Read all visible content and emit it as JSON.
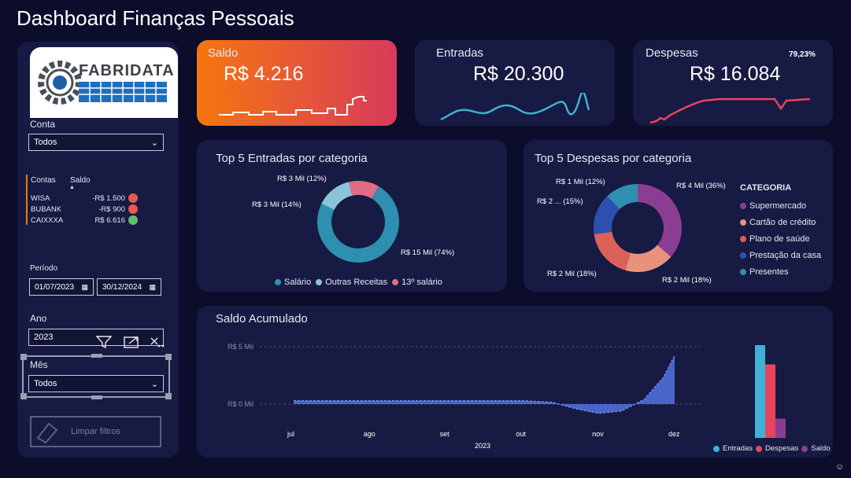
{
  "page_title": "Dashboard Finanças Pessoais",
  "logo_text": "FABRIDATA",
  "filters": {
    "conta_label": "Conta",
    "conta_value": "Todos",
    "contas_header": "Contas",
    "saldo_header": "Saldo",
    "accounts": [
      {
        "name": "WISA",
        "saldo": "-R$ 1.500",
        "status_color": "#e85a4f"
      },
      {
        "name": "BUBANK",
        "saldo": "-R$ 900",
        "status_color": "#e85a4f"
      },
      {
        "name": "CAIXXXA",
        "saldo": "R$ 6.616",
        "status_color": "#5fbf6a"
      }
    ],
    "periodo_label": "Período",
    "date_start": "01/07/2023",
    "date_end": "30/12/2024",
    "ano_label": "Ano",
    "ano_value": "2023",
    "mes_label": "Mês",
    "mes_value": "Todos",
    "clear_label": "Limpar filtros"
  },
  "kpis": {
    "saldo": {
      "label": "Saldo",
      "value": "R$ 4.216"
    },
    "entradas": {
      "label": "Entradas",
      "value": "R$ 20.300"
    },
    "despesas": {
      "label": "Despesas",
      "value": "R$ 16.084",
      "pct": "79,23%"
    }
  },
  "colors": {
    "saldo_grad_start": "#f5760f",
    "saldo_grad_end": "#d83a5c",
    "entradas_line": "#3fb0d6",
    "despesas_line": "#e8445e",
    "area_fill": "#4e6fd8"
  },
  "chart_data": [
    {
      "type": "pie",
      "title": "Top 5 Entradas por categoria",
      "slices": [
        {
          "name": "Salário",
          "value": 74,
          "label": "R$ 15 Mil (74%)",
          "color": "#2e8fb0"
        },
        {
          "name": "Outras Receitas",
          "value": 14,
          "label": "R$ 3 Mil (14%)",
          "color": "#8bc4d8"
        },
        {
          "name": "13º salário",
          "value": 12,
          "label": "R$ 3 Mil (12%)",
          "color": "#e06b85"
        }
      ]
    },
    {
      "type": "pie",
      "title": "Top 5 Despesas por categoria",
      "legend_title": "CATEGORIA",
      "slices": [
        {
          "name": "Supermercado",
          "value": 36,
          "label": "R$ 4 Mil (36%)",
          "color": "#8b3d94"
        },
        {
          "name": "Cartão de crédito",
          "value": 18,
          "label": "R$ 2 Mil (18%)",
          "color": "#e8927c"
        },
        {
          "name": "Plano de saúde",
          "value": 18,
          "label": "R$ 2 Mil (18%)",
          "color": "#d9615a"
        },
        {
          "name": "Prestação da casa",
          "value": 15,
          "label": "R$ 2 ... (15%)",
          "color": "#2f4fb0"
        },
        {
          "name": "Presentes",
          "value": 12,
          "label": "R$ 1 Mil (12%)",
          "color": "#2e8fb0"
        }
      ]
    },
    {
      "type": "area",
      "title": "Saldo Acumulado",
      "xlabel": "2023",
      "categories": [
        "jul",
        "ago",
        "set",
        "out",
        "nov",
        "dez"
      ],
      "ytick_labels": [
        "R$ 5 Mil",
        "R$ 0 Mil"
      ],
      "ylim": [
        -1000,
        5000
      ],
      "x": [
        0,
        0.5,
        1,
        1.5,
        2,
        2.5,
        3,
        3.4,
        3.7,
        4.0,
        4.3,
        4.6,
        4.85,
        5.0
      ],
      "y": [
        300,
        300,
        300,
        300,
        300,
        300,
        300,
        150,
        -400,
        -800,
        -600,
        400,
        2300,
        4216
      ]
    },
    {
      "type": "bar",
      "series": [
        {
          "name": "Entradas",
          "value": 20300,
          "color": "#3fb0d6"
        },
        {
          "name": "Despesas",
          "value": 16084,
          "color": "#e8445e"
        },
        {
          "name": "Saldo",
          "value": 4216,
          "color": "#8b3d94"
        }
      ]
    }
  ]
}
